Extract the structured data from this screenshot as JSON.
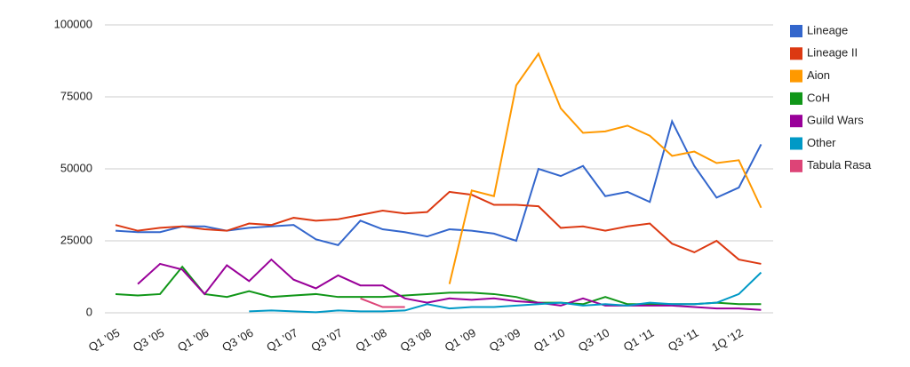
{
  "chart_data": {
    "type": "line",
    "categories": [
      "Q1 '05",
      null,
      "Q3 '05",
      null,
      "Q1 '06",
      null,
      "Q3 '06",
      null,
      "Q1 '07",
      null,
      "Q3 '07",
      null,
      "Q1 '08",
      null,
      "Q3 '08",
      null,
      "Q1 '09",
      null,
      "Q3 '09",
      null,
      "Q1 '10",
      null,
      "Q3 '10",
      null,
      "Q1 '11",
      null,
      "Q3 '11",
      null,
      "1Q '12",
      null
    ],
    "ylim": [
      0,
      100000
    ],
    "yticks": [
      0,
      25000,
      50000,
      75000,
      100000
    ],
    "grid": true,
    "legend": "right",
    "series": [
      {
        "name": "Lineage",
        "color": "#3366cc",
        "values": [
          28500,
          28000,
          28000,
          30000,
          30000,
          28500,
          29500,
          30000,
          30500,
          25500,
          23500,
          32000,
          29000,
          28000,
          26500,
          29000,
          28500,
          27500,
          25000,
          50000,
          47500,
          51000,
          40500,
          42000,
          38500,
          66500,
          51000,
          40000,
          43500,
          58500
        ]
      },
      {
        "name": "Lineage II",
        "color": "#dc3912",
        "values": [
          30500,
          28500,
          29500,
          30000,
          29000,
          28500,
          31000,
          30500,
          33000,
          32000,
          32500,
          34000,
          35500,
          34500,
          35000,
          42000,
          41000,
          37500,
          37500,
          37000,
          29500,
          30000,
          28500,
          30000,
          31000,
          24000,
          21000,
          25000,
          18500,
          17000
        ]
      },
      {
        "name": "Aion",
        "color": "#ff9900",
        "values": [
          null,
          null,
          null,
          null,
          null,
          null,
          null,
          null,
          null,
          null,
          null,
          null,
          null,
          null,
          null,
          10000,
          42500,
          40500,
          79000,
          90000,
          71000,
          62500,
          63000,
          65000,
          61500,
          54500,
          56000,
          52000,
          53000,
          36500
        ]
      },
      {
        "name": "CoH",
        "color": "#109618",
        "values": [
          6500,
          6000,
          6500,
          16000,
          6500,
          5500,
          7500,
          5500,
          6000,
          6500,
          5500,
          5500,
          5500,
          6000,
          6500,
          7000,
          7000,
          6500,
          5500,
          3500,
          3500,
          3000,
          5500,
          3000,
          3000,
          3000,
          3000,
          3500,
          3000,
          3000
        ]
      },
      {
        "name": "Guild Wars",
        "color": "#990099",
        "values": [
          null,
          10000,
          17000,
          15000,
          6500,
          16500,
          11000,
          18500,
          11500,
          8500,
          13000,
          9500,
          9500,
          5000,
          3500,
          5000,
          4500,
          5000,
          4000,
          3500,
          2500,
          5000,
          2500,
          2500,
          2500,
          2500,
          2000,
          1500,
          1500,
          1000
        ]
      },
      {
        "name": "Other",
        "color": "#0099c6",
        "values": [
          null,
          null,
          null,
          null,
          null,
          null,
          500,
          800,
          500,
          200,
          800,
          500,
          500,
          800,
          3000,
          1500,
          2000,
          2000,
          2500,
          3000,
          3500,
          2500,
          3000,
          2500,
          3500,
          3000,
          3000,
          3500,
          6500,
          14000
        ]
      },
      {
        "name": "Tabula Rasa",
        "color": "#dd4477",
        "values": [
          null,
          null,
          null,
          null,
          null,
          null,
          null,
          null,
          null,
          null,
          null,
          5000,
          2000,
          2000,
          null,
          null,
          null,
          null,
          null,
          null,
          null,
          null,
          null,
          null,
          null,
          null,
          null,
          null,
          null,
          null
        ]
      }
    ]
  }
}
